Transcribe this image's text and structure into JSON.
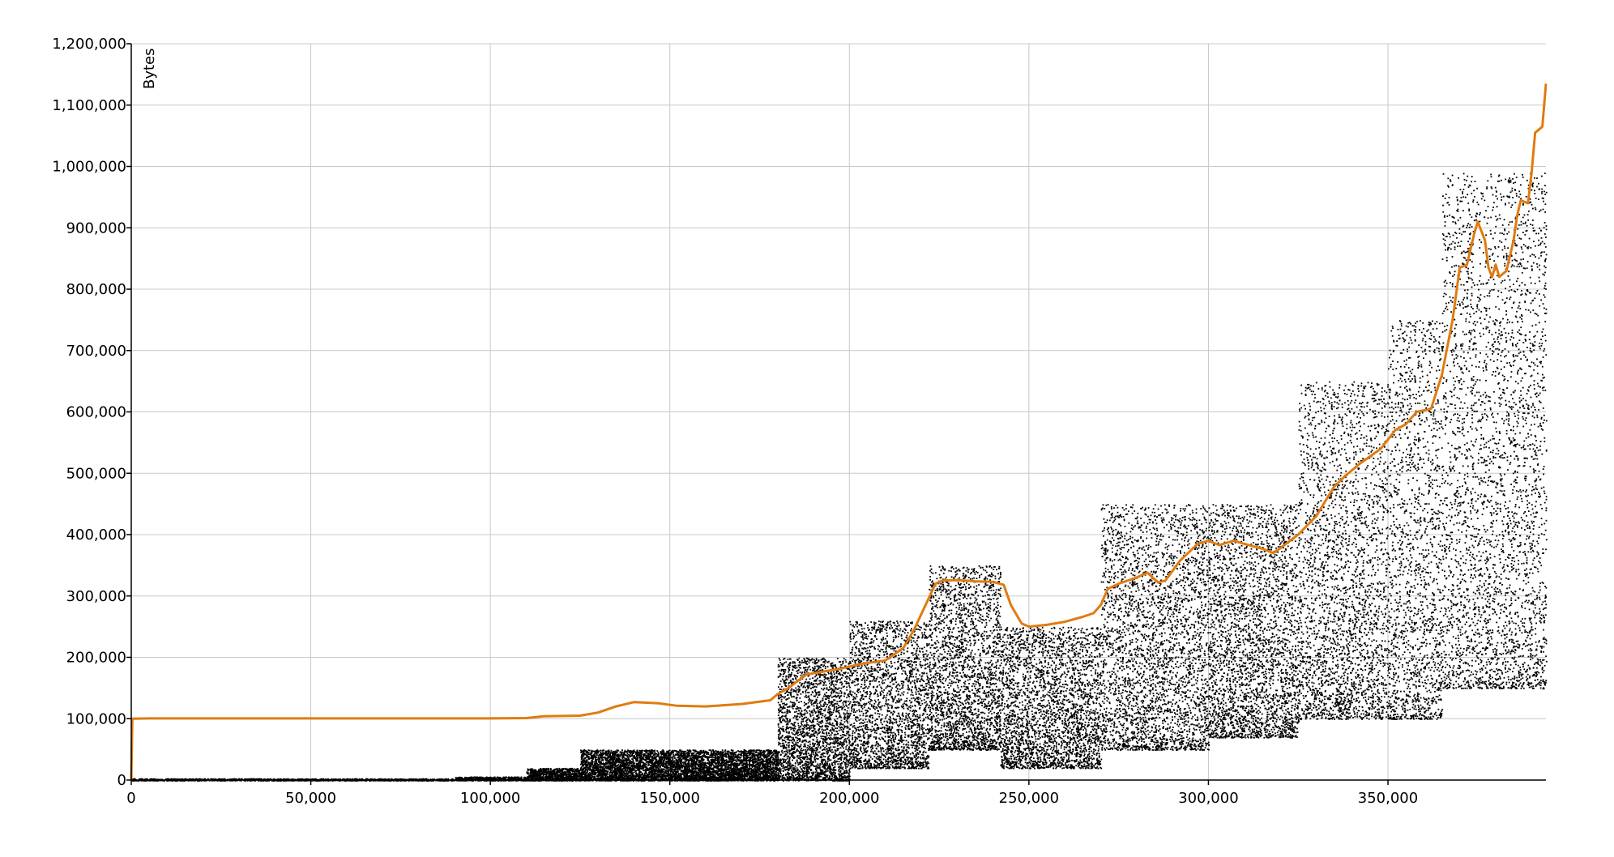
{
  "chart_data": {
    "type": "scatter",
    "title": "",
    "xlabel": "",
    "ylabel": "Bytes",
    "xlim": [
      0,
      394000
    ],
    "ylim": [
      0,
      1200000
    ],
    "grid": true,
    "x_ticks": [
      "0",
      "50,000",
      "100,000",
      "150,000",
      "200,000",
      "250,000",
      "300,000",
      "350,000"
    ],
    "x_tick_values": [
      0,
      50000,
      100000,
      150000,
      200000,
      250000,
      300000,
      350000
    ],
    "y_ticks": [
      "0",
      "100,000",
      "200,000",
      "300,000",
      "400,000",
      "500,000",
      "600,000",
      "700,000",
      "800,000",
      "900,000",
      "1,000,000",
      "1,100,000",
      "1,200,000"
    ],
    "y_tick_values": [
      0,
      100000,
      200000,
      300000,
      400000,
      500000,
      600000,
      700000,
      800000,
      900000,
      1000000,
      1100000,
      1200000
    ],
    "colors": {
      "points": "#000000",
      "average_line": "#e07b10"
    },
    "series": [
      {
        "type": "scatter",
        "color": "#000000",
        "distribution": [
          {
            "x_range": [
              0,
              90000
            ],
            "y_range": [
              0,
              3000
            ],
            "count": 1400
          },
          {
            "x_range": [
              90000,
              110000
            ],
            "y_range": [
              0,
              6000
            ],
            "count": 500
          },
          {
            "x_range": [
              110000,
              125000
            ],
            "y_range": [
              0,
              20000
            ],
            "count": 900
          },
          {
            "x_range": [
              125000,
              180000
            ],
            "y_range": [
              0,
              50000
            ],
            "count": 6000
          },
          {
            "x_range": [
              180000,
              200000
            ],
            "y_range": [
              0,
              200000
            ],
            "count": 2600
          },
          {
            "x_range": [
              200000,
              222000
            ],
            "y_range": [
              20000,
              260000
            ],
            "count": 2300
          },
          {
            "x_range": [
              222000,
              242000
            ],
            "y_range": [
              50000,
              350000
            ],
            "count": 2400
          },
          {
            "x_range": [
              242000,
              270000
            ],
            "y_range": [
              20000,
              250000
            ],
            "count": 2800
          },
          {
            "x_range": [
              270000,
              300000
            ],
            "y_range": [
              50000,
              450000
            ],
            "count": 3200
          },
          {
            "x_range": [
              300000,
              325000
            ],
            "y_range": [
              70000,
              450000
            ],
            "count": 2900
          },
          {
            "x_range": [
              325000,
              350000
            ],
            "y_range": [
              100000,
              650000
            ],
            "count": 2700
          },
          {
            "x_range": [
              350000,
              365000
            ],
            "y_range": [
              100000,
              750000
            ],
            "count": 1600
          },
          {
            "x_range": [
              365000,
              394000
            ],
            "y_range": [
              150000,
              990000
            ],
            "count": 3300
          }
        ]
      },
      {
        "type": "line",
        "color": "#e07b10",
        "x": [
          0,
          300,
          5000,
          50000,
          100000,
          110000,
          115000,
          125000,
          130000,
          135000,
          140000,
          147000,
          152000,
          160000,
          165000,
          170000,
          178000,
          180000,
          183000,
          188000,
          193000,
          198000,
          203000,
          210000,
          215000,
          218000,
          222000,
          224000,
          226000,
          230000,
          235000,
          240000,
          243000,
          245000,
          248000,
          250000,
          255000,
          260000,
          265000,
          268000,
          270000,
          272000,
          275000,
          280000,
          283000,
          286000,
          288000,
          292000,
          297000,
          300000,
          303000,
          307000,
          310000,
          315000,
          318000,
          320000,
          325000,
          330000,
          335000,
          338000,
          342000,
          348000,
          352000,
          355000,
          358000,
          362000,
          365000,
          368000,
          370000,
          372000,
          374000,
          375000,
          377000,
          378000,
          379000,
          380000,
          381000,
          383000,
          385000,
          386000,
          387000,
          389000,
          390000,
          391000,
          393000,
          394000
        ],
        "values": [
          0,
          100000,
          100500,
          100500,
          100500,
          101000,
          104000,
          105000,
          110000,
          120000,
          127000,
          125000,
          121000,
          120000,
          122000,
          124000,
          130000,
          140000,
          150000,
          172000,
          177000,
          182000,
          189000,
          195000,
          215000,
          245000,
          295000,
          320000,
          325000,
          326000,
          324000,
          323000,
          318000,
          285000,
          255000,
          250000,
          253000,
          258000,
          266000,
          272000,
          285000,
          312000,
          320000,
          330000,
          338000,
          322000,
          325000,
          357000,
          385000,
          390000,
          383000,
          390000,
          385000,
          377000,
          370000,
          378000,
          400000,
          430000,
          478000,
          495000,
          515000,
          540000,
          570000,
          580000,
          600000,
          605000,
          660000,
          750000,
          835000,
          840000,
          890000,
          910000,
          880000,
          835000,
          820000,
          840000,
          820000,
          830000,
          880000,
          920000,
          945000,
          940000,
          990000,
          1055000,
          1065000,
          1135000
        ]
      }
    ]
  }
}
